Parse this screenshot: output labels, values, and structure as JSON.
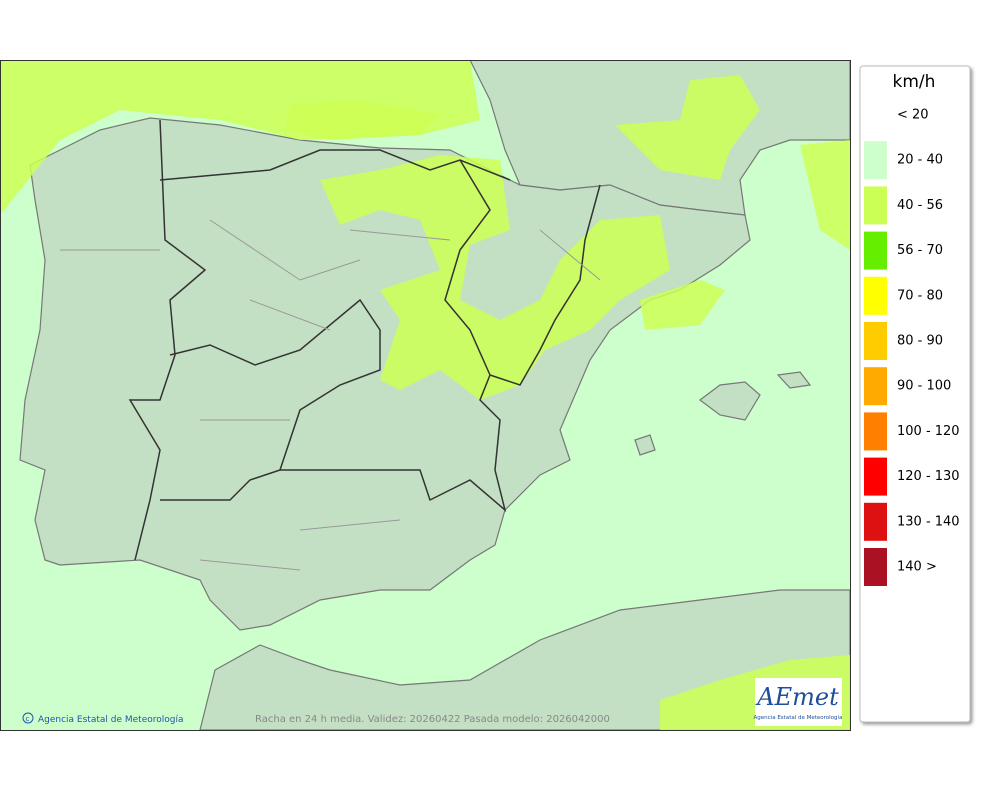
{
  "map": {
    "caption": "Racha en 24 h media. Validez: 20260422 Pasada modelo: 2026042000",
    "credit": "Agencia Estatal de Meteorología",
    "logo": {
      "name": "AEmet",
      "subtitle": "Agencia Estatal de Meteorología"
    },
    "legend": {
      "title": "km/h",
      "items": [
        {
          "label": "< 20"
        },
        {
          "label": "20 - 40",
          "color": "#ccffcc"
        },
        {
          "label": "40 - 56",
          "color": "#ccff55"
        },
        {
          "label": "56 - 70",
          "color": "#66ee00"
        },
        {
          "label": "70 - 80",
          "color": "#ffff00"
        },
        {
          "label": "80 - 90",
          "color": "#ffcc00"
        },
        {
          "label": "90 - 100",
          "color": "#ffaa00"
        },
        {
          "label": "100 - 120",
          "color": "#ff8000"
        },
        {
          "label": "120 - 130",
          "color": "#ff0000"
        },
        {
          "label": "130 - 140",
          "color": "#dd1111"
        },
        {
          "label": "140 >",
          "color": "#aa1122"
        }
      ]
    }
  }
}
